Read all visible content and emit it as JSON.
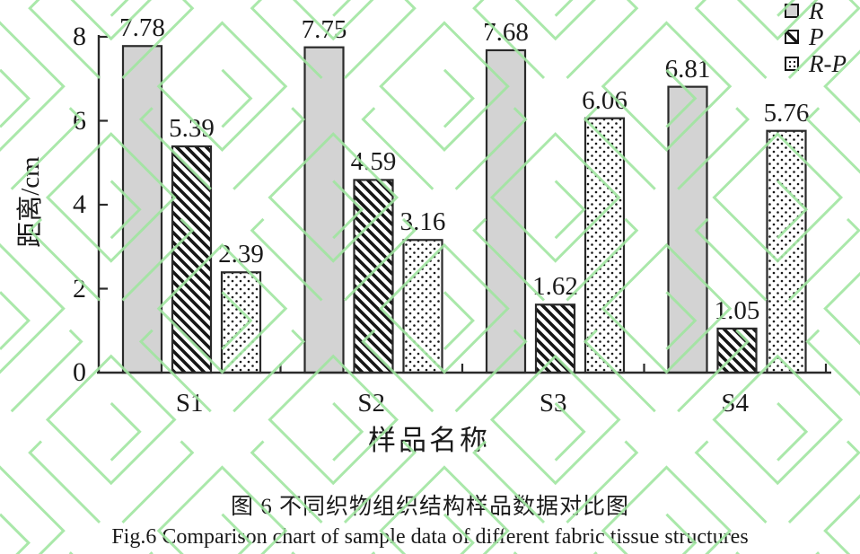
{
  "colors": {
    "text": "#1a1a1a",
    "axis": "#2a2a2a",
    "bar_gray": "#d3d3d3",
    "bar_border": "#2a2a2a",
    "pattern_ink": "#161616",
    "watermark_green": "#a0e5a0",
    "background": "#ffffff"
  },
  "chart_data": {
    "type": "bar",
    "categories": [
      "S1",
      "S2",
      "S3",
      "S4"
    ],
    "series": [
      {
        "name": "R",
        "pattern": "solid",
        "values": [
          7.78,
          7.75,
          7.68,
          6.81
        ]
      },
      {
        "name": "P",
        "pattern": "hatch",
        "values": [
          5.39,
          4.59,
          1.62,
          1.05
        ]
      },
      {
        "name": "R-P",
        "pattern": "dots",
        "values": [
          2.39,
          3.16,
          6.06,
          5.76
        ]
      }
    ],
    "xlabel": "样品名称",
    "ylabel": "距离/cm",
    "ylim": [
      0,
      8
    ],
    "yticks": [
      0,
      2,
      4,
      6,
      8
    ],
    "legend_position": "top-right",
    "grid": false,
    "value_labels": true
  },
  "caption": {
    "line1": "图 6 不同织物组织结构样品数据对比图",
    "line2": "Fig.6 Comparison chart of sample data of different fabric tissue structures"
  }
}
